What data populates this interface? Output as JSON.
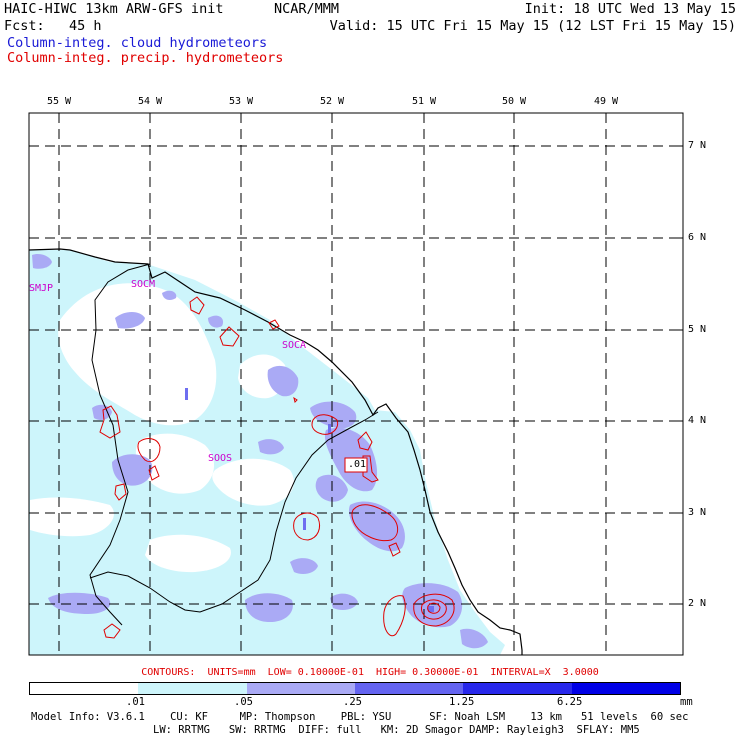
{
  "header": {
    "model": "HAIC-HIWC 13km ARW-GFS init",
    "org": "NCAR/MMM",
    "init": "Init: 18 UTC Wed 13 May 15",
    "fcst": "Fcst:   45 h",
    "valid": "Valid: 15 UTC Fri 15 May 15 (12 LST Fri 15 May 15)",
    "field_cloud": "Column-integ. cloud hydrometeors",
    "field_precip": "Column-integ. precip. hydrometeors"
  },
  "map": {
    "lon_labels": [
      "55 W",
      "54 W",
      "53 W",
      "52 W",
      "51 W",
      "50 W",
      "49 W"
    ],
    "lat_labels": [
      "7 N",
      "6 N",
      "5 N",
      "4 N",
      "3 N",
      "2 N"
    ],
    "stations": [
      "SMJP",
      "SOCM",
      "SOCA",
      "SOOS"
    ],
    "contour_label": ".01"
  },
  "contours_info": "CONTOURS:  UNITS=mm  LOW= 0.10000E-01  HIGH= 0.30000E-01  INTERVAL=X  3.0000",
  "colorbar": {
    "labels": [
      ".01",
      ".05",
      ".25",
      "1.25",
      "6.25"
    ],
    "units": "mm",
    "colors": [
      "#ffffff",
      "#cdf5fb",
      "#aaaaf5",
      "#6464f0",
      "#2828eb",
      "#0000e6"
    ]
  },
  "colors": {
    "cloud_light": "#cdf5fb",
    "cloud_mid": "#aaaaf5",
    "cloud_dark": "#6e6ef0",
    "precip": "#e00000",
    "title_blue": "#1a1ad6",
    "station": "#cc00cc"
  },
  "model_info": {
    "line1": "Model Info: V3.6.1    CU: KF     MP: Thompson    PBL: YSU      SF: Noah LSM    13 km   51 levels  60 sec",
    "line2": "LW: RRTMG   SW: RRTMG  DIFF: full   KM: 2D Smagor DAMP: Rayleigh3  SFLAY: MM5"
  }
}
